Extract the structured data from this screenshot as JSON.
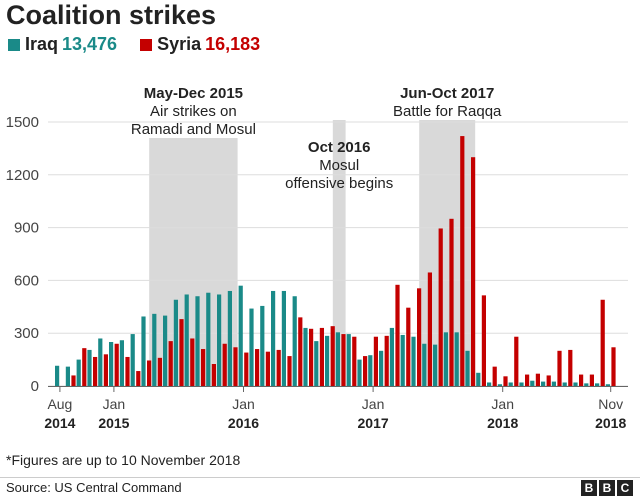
{
  "chart_data": {
    "type": "bar",
    "title": "Coalition strikes",
    "ylim": [
      0,
      1500
    ],
    "yticks": [
      "0",
      "300",
      "600",
      "900",
      "1200",
      "1500"
    ],
    "grid": true,
    "legend_position": "top-left",
    "legend": [
      {
        "name": "Iraq",
        "total": "13,476",
        "color": "#1a8a88"
      },
      {
        "name": "Syria",
        "total": "16,183",
        "color": "#c40000"
      }
    ],
    "x_labels": [
      {
        "month": "Aug",
        "year": "2014",
        "index": 0
      },
      {
        "month": "Jan",
        "year": "2015",
        "index": 5
      },
      {
        "month": "Jan",
        "year": "2016",
        "index": 17
      },
      {
        "month": "Jan",
        "year": "2017",
        "index": 29
      },
      {
        "month": "Jan",
        "year": "2018",
        "index": 41
      },
      {
        "month": "Nov",
        "year": "2018",
        "index": 51
      }
    ],
    "categories": [
      "Aug 2014",
      "Sep 2014",
      "Oct 2014",
      "Nov 2014",
      "Dec 2014",
      "Jan 2015",
      "Feb 2015",
      "Mar 2015",
      "Apr 2015",
      "May 2015",
      "Jun 2015",
      "Jul 2015",
      "Aug 2015",
      "Sep 2015",
      "Oct 2015",
      "Nov 2015",
      "Dec 2015",
      "Jan 2016",
      "Feb 2016",
      "Mar 2016",
      "Apr 2016",
      "May 2016",
      "Jun 2016",
      "Jul 2016",
      "Aug 2016",
      "Sep 2016",
      "Oct 2016",
      "Nov 2016",
      "Dec 2016",
      "Jan 2017",
      "Feb 2017",
      "Mar 2017",
      "Apr 2017",
      "May 2017",
      "Jun 2017",
      "Jul 2017",
      "Aug 2017",
      "Sep 2017",
      "Oct 2017",
      "Nov 2017",
      "Dec 2017",
      "Jan 2018",
      "Feb 2018",
      "Mar 2018",
      "Apr 2018",
      "May 2018",
      "Jun 2018",
      "Jul 2018",
      "Aug 2018",
      "Sep 2018",
      "Oct 2018",
      "Nov 2018"
    ],
    "series": [
      {
        "name": "Iraq",
        "color": "#1a8a88",
        "values": [
          115,
          110,
          150,
          205,
          270,
          250,
          260,
          295,
          395,
          410,
          400,
          490,
          520,
          510,
          530,
          520,
          540,
          570,
          440,
          455,
          540,
          540,
          510,
          330,
          255,
          285,
          305,
          295,
          150,
          175,
          200,
          330,
          290,
          280,
          240,
          235,
          305,
          305,
          200,
          75,
          20,
          10,
          20,
          20,
          30,
          25,
          25,
          20,
          20,
          15,
          15,
          10
        ]
      },
      {
        "name": "Syria",
        "color": "#c40000",
        "values": [
          0,
          60,
          215,
          165,
          180,
          240,
          165,
          85,
          145,
          160,
          255,
          380,
          270,
          210,
          125,
          240,
          220,
          190,
          210,
          195,
          205,
          170,
          390,
          325,
          330,
          340,
          295,
          280,
          170,
          280,
          285,
          575,
          445,
          555,
          645,
          895,
          950,
          1420,
          1300,
          515,
          110,
          55,
          280,
          65,
          70,
          60,
          200,
          205,
          65,
          65,
          490,
          220
        ]
      }
    ],
    "annotations": [
      {
        "title": "May-Dec 2015",
        "text": [
          "Air strikes on",
          "Ramadi and Mosul"
        ],
        "start_index": 9,
        "end_index": 16
      },
      {
        "title": "Oct 2016",
        "text": [
          "Mosul",
          "offensive begins"
        ],
        "start_index": 26,
        "end_index": 26
      },
      {
        "title": "Jun-Oct 2017",
        "text": [
          "Battle for Raqqa"
        ],
        "start_index": 34,
        "end_index": 38
      }
    ]
  },
  "footnote": "*Figures are up to 10 November 2018",
  "source": "Source: US Central Command",
  "brand": [
    "B",
    "B",
    "C"
  ]
}
